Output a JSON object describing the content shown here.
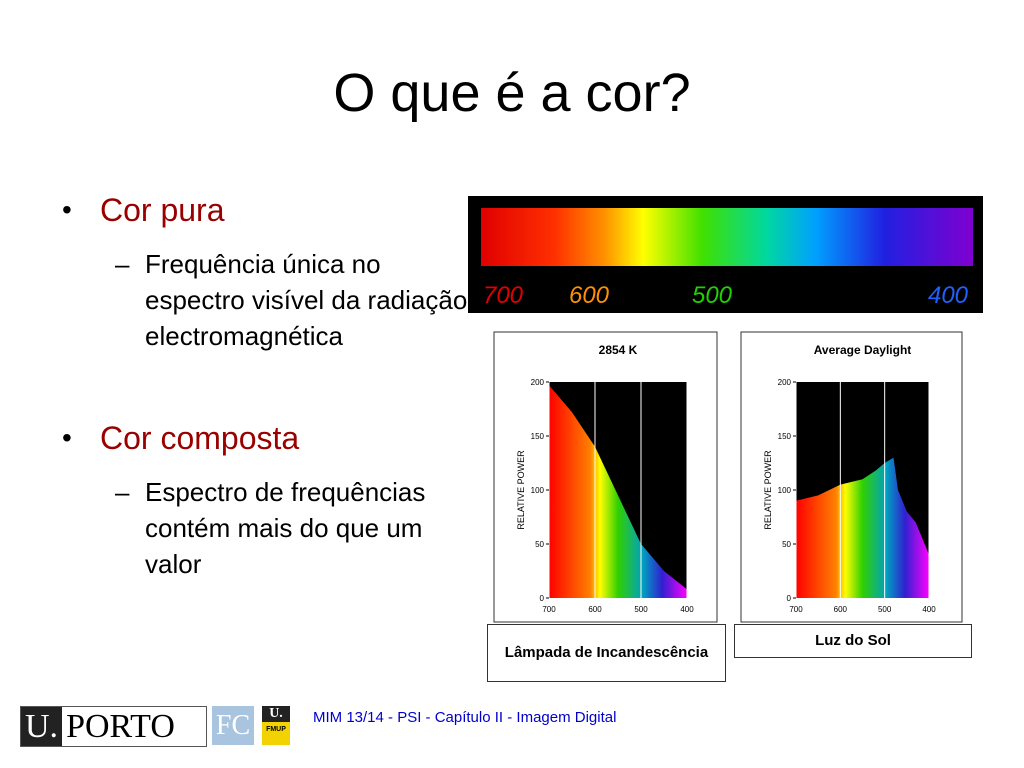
{
  "title": "O que é a cor?",
  "bullets": [
    {
      "text": "Cor pura",
      "sub": "Frequência única no espectro visível da radiação electromagnética"
    },
    {
      "text": "Cor composta",
      "sub": "Espectro de frequências contém mais do que um valor"
    }
  ],
  "spectrum": {
    "labels": [
      "700",
      "600",
      "500",
      "400"
    ]
  },
  "charts": [
    {
      "type": "area",
      "title": "2854 K",
      "y_label": "RELATIVE POWER",
      "x": [
        700,
        650,
        600,
        550,
        500,
        450,
        400
      ],
      "values": [
        197,
        172,
        140,
        95,
        50,
        25,
        8
      ],
      "xlim": [
        700,
        400
      ],
      "ylim": [
        0,
        200
      ],
      "xticks": [
        700,
        600,
        500,
        400
      ],
      "yticks": [
        0,
        50,
        100,
        150,
        200
      ],
      "caption": "Lâmpada de Incandescência"
    },
    {
      "type": "area",
      "title": "Average Daylight",
      "y_label": "RELATIVE POWER",
      "x": [
        700,
        650,
        600,
        550,
        520,
        500,
        480,
        470,
        450,
        430,
        400
      ],
      "values": [
        90,
        95,
        105,
        110,
        118,
        125,
        130,
        100,
        80,
        70,
        40
      ],
      "xlim": [
        700,
        400
      ],
      "ylim": [
        0,
        200
      ],
      "xticks": [
        700,
        600,
        500,
        400
      ],
      "yticks": [
        0,
        50,
        100,
        150,
        200
      ],
      "caption": "Luz do Sol"
    }
  ],
  "footer": {
    "logo_u": "U.",
    "logo_porto": "PORTO",
    "logo_fc": "FC",
    "logo_fmup_u": "U.",
    "logo_fmup": "FMUP",
    "text": "MIM 13/14 - PSI - Capítulo II - Imagem Digital"
  }
}
